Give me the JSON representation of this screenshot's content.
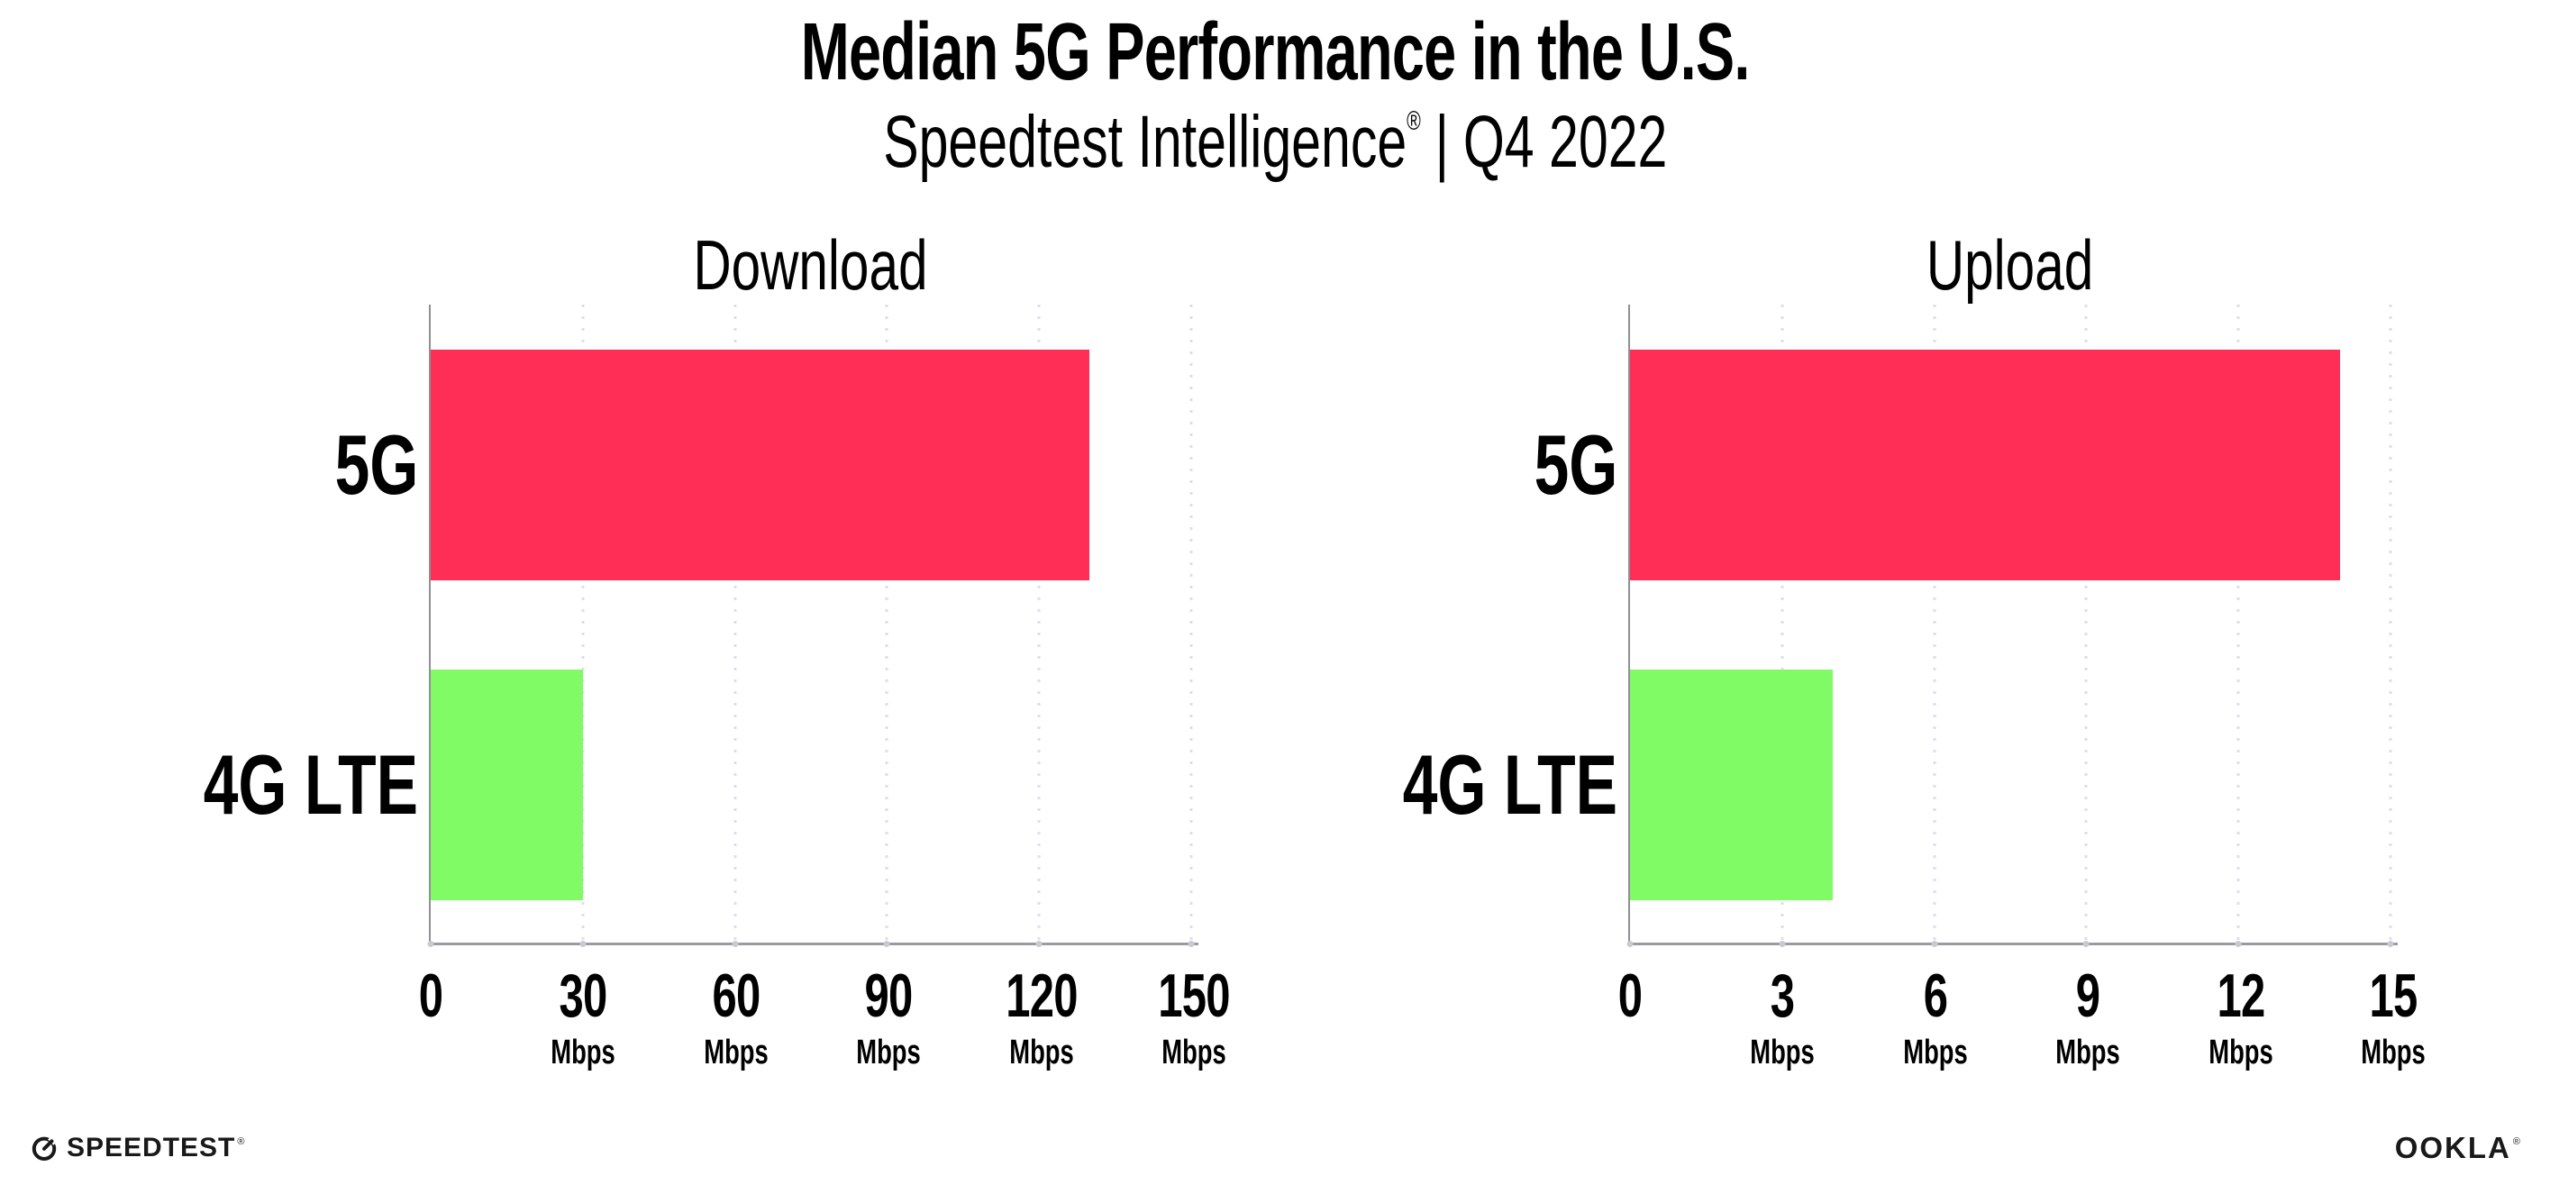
{
  "header": {
    "title": "Median 5G Performance in the U.S.",
    "subtitle": {
      "brand": "Speedtest Intelligence",
      "registered_mark": "®",
      "separator": "|",
      "period": "Q4 2022"
    }
  },
  "chart_data": [
    {
      "type": "bar",
      "orientation": "horizontal",
      "title": "Download",
      "categories": [
        "5G",
        "4G LTE"
      ],
      "values": [
        130,
        30
      ],
      "unit": "Mbps",
      "xlabel": "",
      "ylabel": "",
      "xlim": [
        0,
        150
      ],
      "xticks": [
        0,
        30,
        60,
        90,
        120,
        150
      ],
      "bar_colors": [
        "#FF2E56",
        "#80FB66"
      ],
      "grid": "dotted-vertical",
      "legend": "none"
    },
    {
      "type": "bar",
      "orientation": "horizontal",
      "title": "Upload",
      "categories": [
        "5G",
        "4G LTE"
      ],
      "values": [
        14,
        4
      ],
      "unit": "Mbps",
      "xlabel": "",
      "ylabel": "",
      "xlim": [
        0,
        15
      ],
      "xticks": [
        0,
        3,
        6,
        9,
        12,
        15
      ],
      "bar_colors": [
        "#FF2E56",
        "#80FB66"
      ],
      "grid": "dotted-vertical",
      "legend": "none"
    }
  ],
  "footer": {
    "speedtest_label": "SPEEDTEST",
    "speedtest_mark": "®",
    "ookla_label": "OOKLA",
    "ookla_mark": "®"
  },
  "colors": {
    "bar_5g": "#FF2E56",
    "bar_4g_lte": "#80FB66",
    "gridline": "#DEDEE8",
    "x_axis": "#9A9AA2",
    "y_axis": "#8F8F97",
    "tick_dot": "#C9C9D3",
    "text": "#000000",
    "background": "#FFFFFF"
  }
}
